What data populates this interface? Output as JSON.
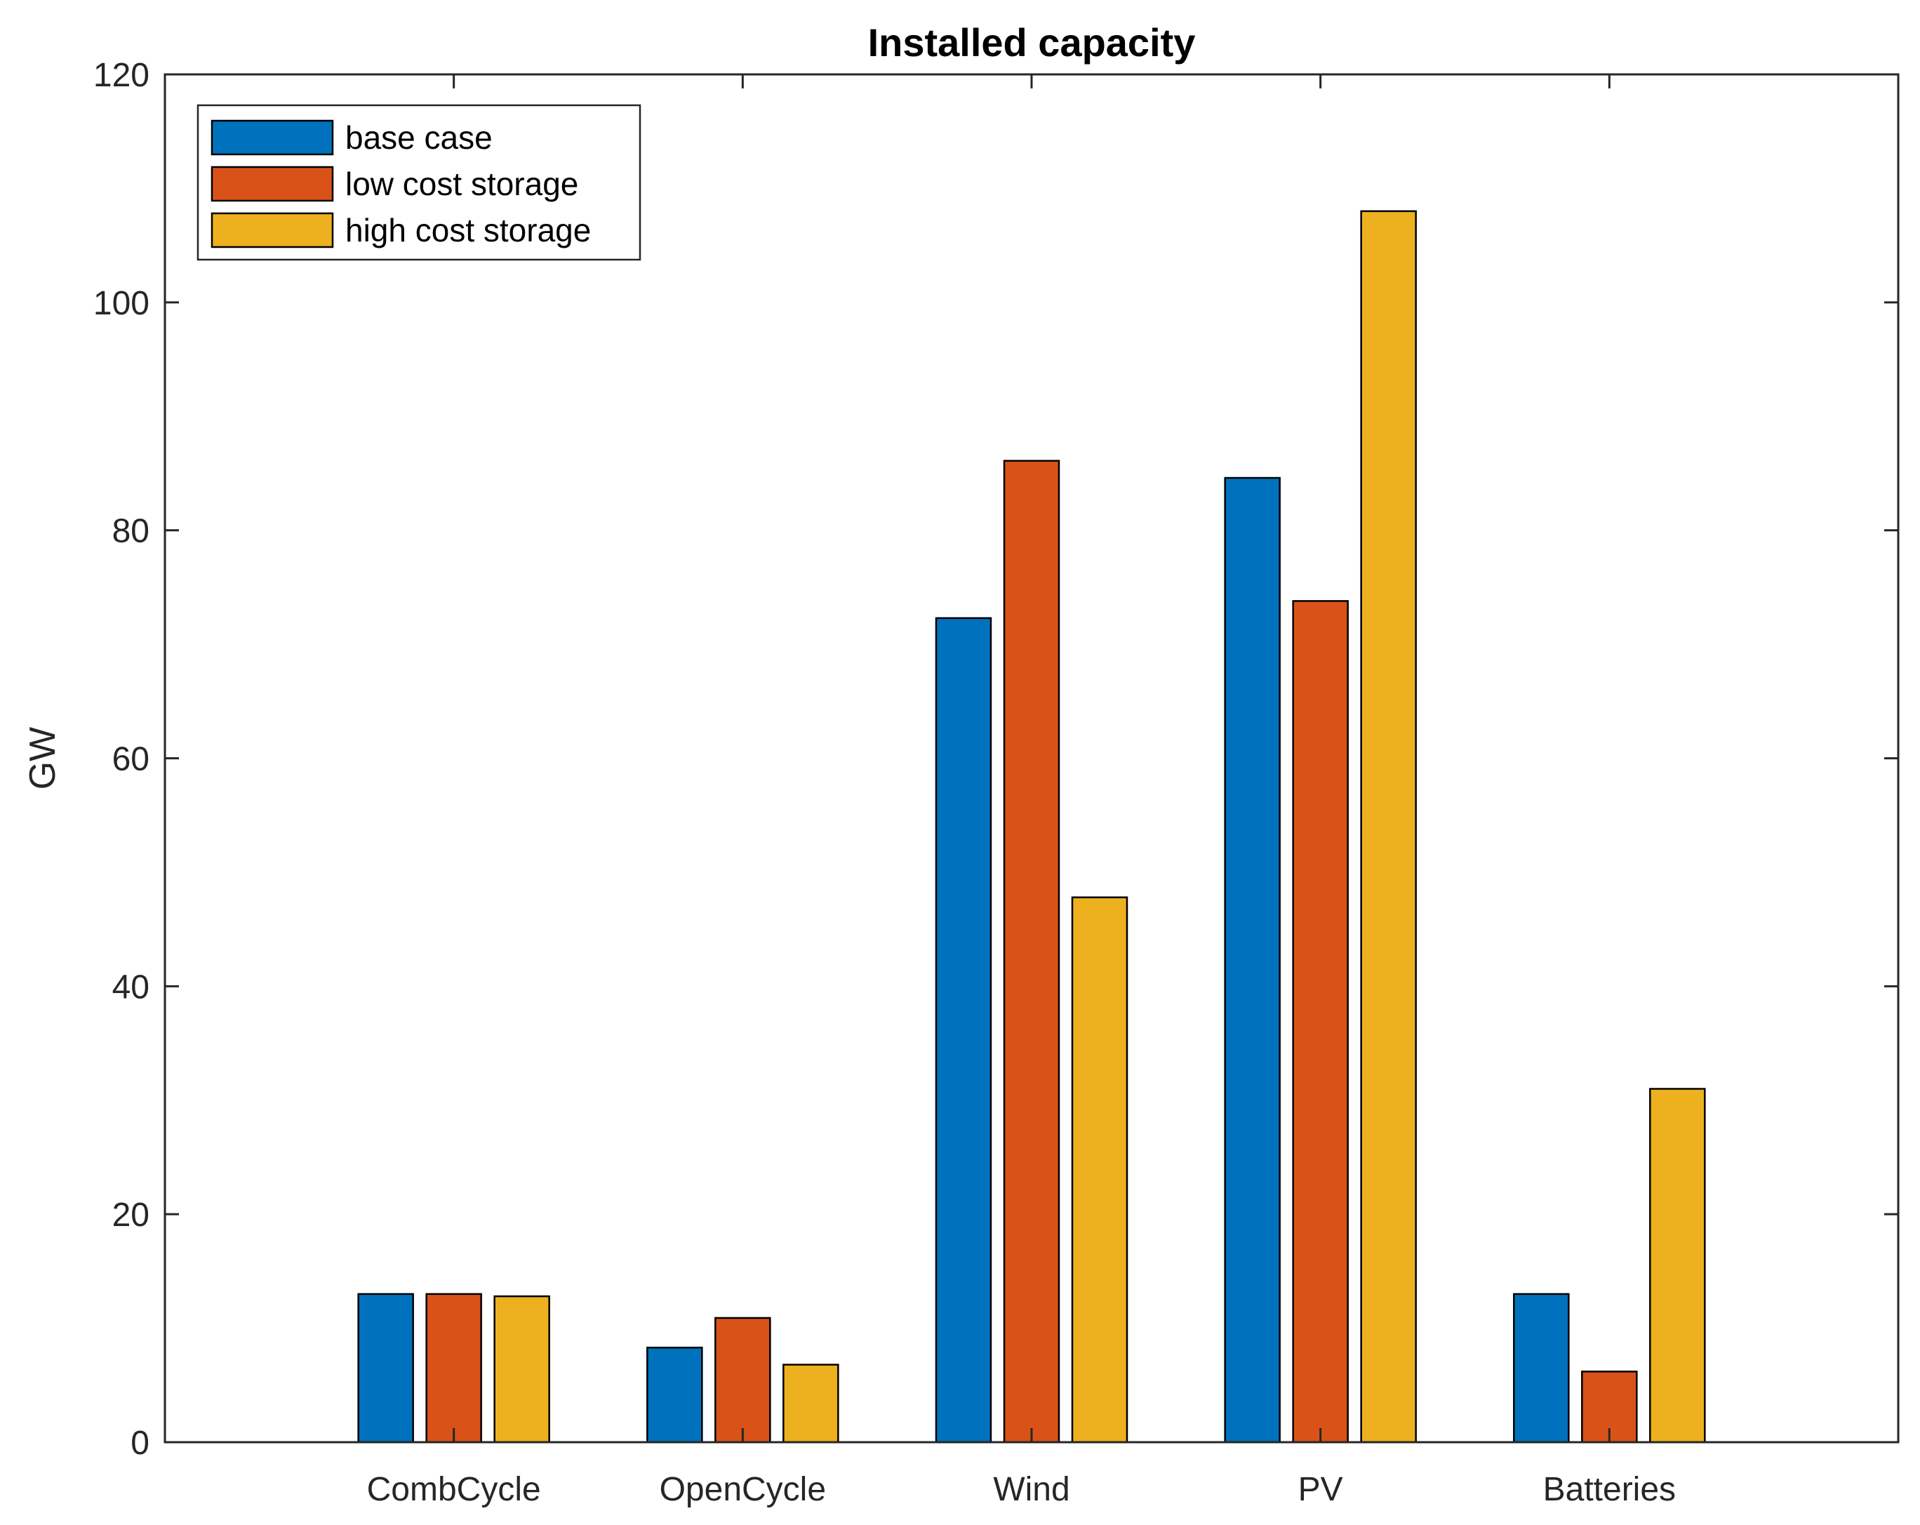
{
  "chart_data": {
    "type": "bar",
    "title": "Installed capacity",
    "xlabel": "",
    "ylabel": "GW",
    "ylim": [
      0,
      120
    ],
    "yticks": [
      0,
      20,
      40,
      60,
      80,
      100,
      120
    ],
    "grid": false,
    "legend_position": "top-left",
    "categories": [
      "CombCycle",
      "OpenCycle",
      "Wind",
      "PV",
      "Batteries"
    ],
    "series": [
      {
        "name": "base case",
        "color": "#0072BD",
        "values": [
          13,
          8.3,
          72.3,
          84.6,
          13
        ]
      },
      {
        "name": "low cost storage",
        "color": "#D95319",
        "values": [
          13,
          10.9,
          86.1,
          73.8,
          6.2
        ]
      },
      {
        "name": "high cost storage",
        "color": "#EDB120",
        "values": [
          12.8,
          6.8,
          47.8,
          108,
          31
        ]
      }
    ]
  }
}
